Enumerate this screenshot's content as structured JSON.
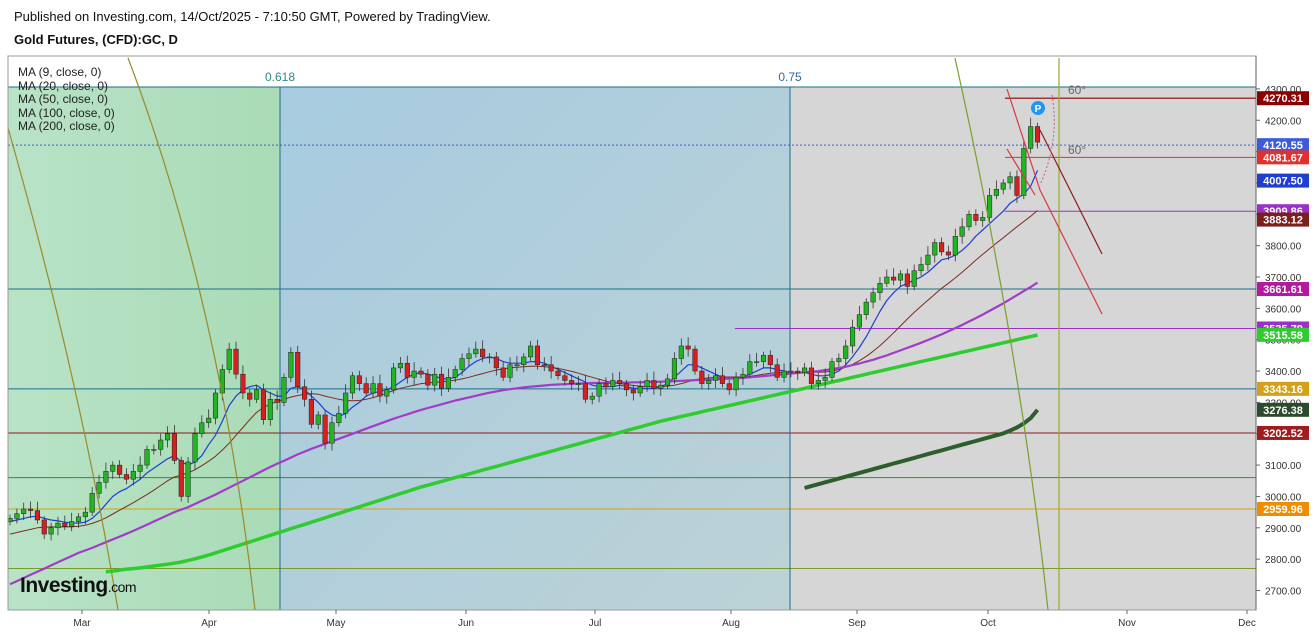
{
  "header": {
    "published": "Published on Investing.com, 14/Oct/2025 - 7:10:50 GMT, Powered by TradingView.",
    "symbol": "Gold Futures, (CFD):GC, D"
  },
  "moving_averages": [
    {
      "label": "MA (9, close, 0)",
      "color": "#1f3fd1"
    },
    {
      "label": "MA (20, close, 0)",
      "color": "#7b2d1e"
    },
    {
      "label": "MA (50, close, 0)",
      "color": "#a13cc8"
    },
    {
      "label": "MA (100, close, 0)",
      "color": "#2ecc2e"
    },
    {
      "label": "MA (200, close, 0)",
      "color": "#2d5e2d"
    }
  ],
  "logo": {
    "main": "Investing",
    "suffix": ".com"
  },
  "chart_data": {
    "type": "candlestick",
    "title": "Gold Futures, (CFD):GC, D",
    "x_labels": [
      "Mar",
      "Apr",
      "May",
      "Jun",
      "Jul",
      "Aug",
      "Sep",
      "Oct",
      "Nov",
      "Dec"
    ],
    "y_ticks": [
      2700,
      2800,
      2900,
      3000,
      3100,
      3200,
      3300,
      3400,
      3500,
      3600,
      3700,
      3800,
      3900,
      4000,
      4100,
      4200,
      4300
    ],
    "y_tick_labels": [
      "2700.00",
      "2800.00",
      "2900.00",
      "3000.00",
      "3100.00",
      "3200.00",
      "3300.00",
      "3400.00",
      "3500.00",
      "3600.00",
      "3700.00",
      "3800.00",
      "3900.00",
      "4000.00",
      "4100.00",
      "4200.00",
      "4300.00"
    ],
    "ylim": [
      2650,
      4340
    ],
    "fib_labels": [
      "0.618",
      "0.75"
    ],
    "angle_labels": [
      "60°",
      "60°"
    ],
    "price_markers": [
      {
        "label": "4270.31",
        "value": 4270.31,
        "color": "#8b0000"
      },
      {
        "label": "4120.55",
        "value": 4120.55,
        "color": "#3b5bdb"
      },
      {
        "label": "4081.67",
        "value": 4081.67,
        "color": "#e03131"
      },
      {
        "label": "4007.50",
        "value": 4007.5,
        "color": "#1f3fd1"
      },
      {
        "label": "3909.86",
        "value": 3909.86,
        "color": "#9b30c8"
      },
      {
        "label": "3883.12",
        "value": 3883.12,
        "color": "#7b1e1e"
      },
      {
        "label": "3661.61",
        "value": 3661.61,
        "color": "#b5179e"
      },
      {
        "label": "3535.79",
        "value": 3535.79,
        "color": "#9b30c8"
      },
      {
        "label": "3515.58",
        "value": 3515.58,
        "color": "#2ecc2e"
      },
      {
        "label": "3343.16",
        "value": 3343.16,
        "color": "#d4a017"
      },
      {
        "label": "3276.38",
        "value": 3276.38,
        "color": "#2d4a2d"
      },
      {
        "label": "3202.52",
        "value": 3202.52,
        "color": "#a11d1d"
      },
      {
        "label": "2959.96",
        "value": 2959.96,
        "color": "#f08c00"
      }
    ],
    "horizontal_levels": [
      {
        "value": 3661.61,
        "color": "#1b6f8a"
      },
      {
        "value": 3343.16,
        "color": "#1b6f8a"
      },
      {
        "value": 3202.52,
        "color": "#8b1a1a"
      },
      {
        "value": 3060,
        "color": "#2f8f2f"
      },
      {
        "value": 2959.96,
        "color": "#d4a017"
      },
      {
        "value": 2770,
        "color": "#7a9a2a"
      }
    ],
    "close_series": [
      2930,
      2945,
      2960,
      2955,
      2925,
      2880,
      2900,
      2915,
      2905,
      2920,
      2935,
      2950,
      3010,
      3045,
      3080,
      3100,
      3070,
      3055,
      3080,
      3100,
      3150,
      3150,
      3180,
      3200,
      3115,
      3000,
      3110,
      3200,
      3235,
      3250,
      3330,
      3405,
      3470,
      3390,
      3330,
      3310,
      3340,
      3245,
      3310,
      3300,
      3380,
      3460,
      3350,
      3310,
      3230,
      3260,
      3170,
      3235,
      3265,
      3330,
      3385,
      3360,
      3330,
      3360,
      3320,
      3340,
      3410,
      3425,
      3380,
      3400,
      3390,
      3355,
      3390,
      3345,
      3380,
      3405,
      3440,
      3455,
      3470,
      3445,
      3445,
      3410,
      3380,
      3420,
      3420,
      3445,
      3480,
      3420,
      3420,
      3400,
      3385,
      3370,
      3360,
      3360,
      3310,
      3320,
      3360,
      3350,
      3370,
      3360,
      3340,
      3330,
      3350,
      3370,
      3345,
      3355,
      3375,
      3440,
      3480,
      3470,
      3400,
      3360,
      3370,
      3385,
      3360,
      3340,
      3380,
      3390,
      3430,
      3430,
      3450,
      3420,
      3380,
      3400,
      3400,
      3395,
      3410,
      3360,
      3370,
      3380,
      3430,
      3440,
      3480,
      3540,
      3580,
      3620,
      3650,
      3680,
      3700,
      3690,
      3710,
      3670,
      3720,
      3740,
      3770,
      3810,
      3780,
      3770,
      3830,
      3860,
      3900,
      3880,
      3890,
      3960,
      3980,
      4000,
      4020,
      3960,
      4110,
      4180,
      4130
    ],
    "ma_series": [
      {
        "name": "MA (9, close, 0)",
        "values": [
          2920,
          2925,
          2930,
          2935,
          2937,
          2930,
          2925,
          2922,
          2918,
          2916,
          2915,
          2918,
          2930,
          2950,
          2975,
          3000,
          3015,
          3025,
          3040,
          3055,
          3075,
          3090,
          3105,
          3120,
          3130,
          3110,
          3100,
          3110,
          3130,
          3165,
          3195,
          3240,
          3290,
          3320,
          3340,
          3350,
          3355,
          3340,
          3330,
          3320,
          3320,
          3345,
          3350,
          3340,
          3320,
          3300,
          3275,
          3260,
          3255,
          3265,
          3285,
          3300,
          3320,
          3330,
          3335,
          3340,
          3350,
          3365,
          3380,
          3390,
          3395,
          3390,
          3385,
          3375,
          3375,
          3380,
          3395,
          3415,
          3430,
          3440,
          3445,
          3440,
          3430,
          3425,
          3425,
          3425,
          3430,
          3430,
          3425,
          3415,
          3405,
          3395,
          3385,
          3375,
          3365,
          3355,
          3350,
          3350,
          3350,
          3355,
          3350,
          3345,
          3345,
          3345,
          3345,
          3350,
          3360,
          3380,
          3400,
          3420,
          3420,
          3410,
          3400,
          3390,
          3380,
          3375,
          3375,
          3380,
          3390,
          3400,
          3410,
          3410,
          3405,
          3400,
          3395,
          3395,
          3395,
          3390,
          3385,
          3385,
          3390,
          3400,
          3420,
          3445,
          3475,
          3510,
          3550,
          3590,
          3625,
          3650,
          3670,
          3680,
          3690,
          3700,
          3715,
          3735,
          3755,
          3760,
          3770,
          3785,
          3805,
          3830,
          3850,
          3870,
          3890,
          3910,
          3935,
          3950,
          3965,
          3990,
          4040
        ]
      },
      {
        "name": "MA (20, close, 0)",
        "values": [
          2880,
          2885,
          2890,
          2895,
          2900,
          2902,
          2903,
          2903,
          2903,
          2903,
          2905,
          2908,
          2914,
          2922,
          2932,
          2944,
          2956,
          2968,
          2980,
          2993,
          3006,
          3020,
          3035,
          3050,
          3062,
          3068,
          3075,
          3085,
          3098,
          3112,
          3128,
          3148,
          3170,
          3195,
          3220,
          3245,
          3268,
          3283,
          3295,
          3303,
          3310,
          3317,
          3322,
          3326,
          3328,
          3326,
          3320,
          3315,
          3310,
          3306,
          3305,
          3306,
          3310,
          3315,
          3322,
          3330,
          3338,
          3345,
          3350,
          3355,
          3360,
          3362,
          3364,
          3366,
          3368,
          3371,
          3375,
          3380,
          3386,
          3392,
          3398,
          3403,
          3407,
          3410,
          3412,
          3414,
          3415,
          3415,
          3414,
          3412,
          3408,
          3404,
          3399,
          3393,
          3386,
          3380,
          3374,
          3368,
          3363,
          3360,
          3357,
          3354,
          3352,
          3351,
          3350,
          3350,
          3352,
          3355,
          3360,
          3366,
          3372,
          3376,
          3378,
          3380,
          3381,
          3381,
          3381,
          3381,
          3383,
          3386,
          3390,
          3393,
          3395,
          3396,
          3396,
          3396,
          3396,
          3396,
          3396,
          3397,
          3400,
          3405,
          3412,
          3421,
          3433,
          3447,
          3463,
          3481,
          3501,
          3522,
          3544,
          3566,
          3587,
          3607,
          3626,
          3645,
          3664,
          3680,
          3697,
          3715,
          3734,
          3754,
          3772,
          3790,
          3808,
          3825,
          3843,
          3860,
          3877,
          3894,
          3912
        ]
      },
      {
        "name": "MA (50, close, 0)",
        "values": [
          2720,
          2730,
          2740,
          2750,
          2760,
          2770,
          2780,
          2790,
          2800,
          2810,
          2820,
          2828,
          2836,
          2845,
          2854,
          2863,
          2872,
          2881,
          2890,
          2900,
          2910,
          2920,
          2930,
          2940,
          2950,
          2958,
          2966,
          2976,
          2986,
          2996,
          3006,
          3017,
          3028,
          3039,
          3050,
          3061,
          3072,
          3083,
          3094,
          3104,
          3114,
          3124,
          3134,
          3143,
          3152,
          3160,
          3168,
          3176,
          3184,
          3192,
          3200,
          3208,
          3216,
          3224,
          3232,
          3240,
          3248,
          3255,
          3262,
          3269,
          3276,
          3282,
          3288,
          3294,
          3300,
          3306,
          3311,
          3316,
          3321,
          3326,
          3331,
          3335,
          3339,
          3342,
          3345,
          3348,
          3350,
          3352,
          3354,
          3356,
          3357,
          3358,
          3359,
          3360,
          3361,
          3362,
          3362,
          3362,
          3362,
          3363,
          3363,
          3364,
          3364,
          3365,
          3365,
          3366,
          3367,
          3368,
          3369,
          3370,
          3371,
          3372,
          3373,
          3374,
          3375,
          3376,
          3377,
          3378,
          3380,
          3382,
          3384,
          3386,
          3388,
          3390,
          3392,
          3394,
          3396,
          3398,
          3400,
          3403,
          3406,
          3410,
          3414,
          3419,
          3424,
          3430,
          3436,
          3443,
          3450,
          3458,
          3466,
          3474,
          3482,
          3490,
          3499,
          3508,
          3517,
          3527,
          3537,
          3547,
          3558,
          3569,
          3580,
          3592,
          3604,
          3616,
          3629,
          3642,
          3655,
          3668,
          3682
        ]
      },
      {
        "name": "MA (100, close, 0)",
        "values": [
          null,
          null,
          null,
          null,
          null,
          null,
          null,
          null,
          null,
          null,
          null,
          null,
          null,
          null,
          2760,
          2762,
          2765,
          2768,
          2770,
          2772,
          2775,
          2778,
          2781,
          2784,
          2787,
          2791,
          2796,
          2801,
          2807,
          2813,
          2820,
          2827,
          2834,
          2841,
          2848,
          2855,
          2862,
          2869,
          2876,
          2883,
          2890,
          2897,
          2904,
          2911,
          2918,
          2925,
          2932,
          2939,
          2946,
          2953,
          2960,
          2967,
          2974,
          2981,
          2988,
          2995,
          3002,
          3009,
          3016,
          3023,
          3030,
          3036,
          3042,
          3048,
          3054,
          3060,
          3066,
          3072,
          3078,
          3084,
          3090,
          3096,
          3102,
          3108,
          3114,
          3120,
          3126,
          3132,
          3138,
          3144,
          3150,
          3156,
          3162,
          3168,
          3174,
          3180,
          3186,
          3192,
          3198,
          3204,
          3210,
          3216,
          3222,
          3228,
          3234,
          3240,
          3245,
          3250,
          3255,
          3260,
          3265,
          3270,
          3275,
          3280,
          3285,
          3290,
          3295,
          3300,
          3305,
          3310,
          3315,
          3320,
          3325,
          3330,
          3335,
          3340,
          3345,
          3350,
          3355,
          3360,
          3365,
          3370,
          3375,
          3380,
          3385,
          3390,
          3395,
          3400,
          3405,
          3410,
          3415,
          3420,
          3425,
          3430,
          3435,
          3440,
          3445,
          3450,
          3455,
          3460,
          3465,
          3470,
          3475,
          3480,
          3485,
          3490,
          3495,
          3500,
          3505,
          3510,
          3515
        ]
      },
      {
        "name": "MA (200, close, 0)",
        "values": [
          null,
          null,
          null,
          null,
          null,
          null,
          null,
          null,
          null,
          null,
          null,
          null,
          null,
          null,
          null,
          null,
          null,
          null,
          null,
          null,
          null,
          null,
          null,
          null,
          null,
          null,
          null,
          null,
          null,
          null,
          null,
          null,
          null,
          null,
          null,
          null,
          null,
          null,
          null,
          null,
          null,
          null,
          null,
          null,
          null,
          null,
          null,
          null,
          null,
          null,
          null,
          null,
          null,
          null,
          null,
          null,
          null,
          null,
          null,
          null,
          null,
          null,
          null,
          null,
          null,
          null,
          null,
          null,
          null,
          null,
          null,
          null,
          null,
          null,
          null,
          null,
          null,
          null,
          null,
          null,
          null,
          null,
          null,
          null,
          null,
          null,
          null,
          null,
          null,
          null,
          null,
          null,
          null,
          null,
          null,
          null,
          null,
          null,
          null,
          null,
          null,
          null,
          null,
          null,
          null,
          null,
          null,
          null,
          null,
          null,
          null,
          null,
          null,
          null,
          null,
          null,
          3027,
          3033,
          3039,
          3045,
          3051,
          3057,
          3063,
          3069,
          3075,
          3081,
          3087,
          3093,
          3099,
          3105,
          3111,
          3117,
          3123,
          3129,
          3135,
          3141,
          3147,
          3153,
          3159,
          3165,
          3171,
          3177,
          3183,
          3189,
          3195,
          3201,
          3210,
          3220,
          3233,
          3250,
          3276
        ]
      }
    ],
    "grid": true
  }
}
